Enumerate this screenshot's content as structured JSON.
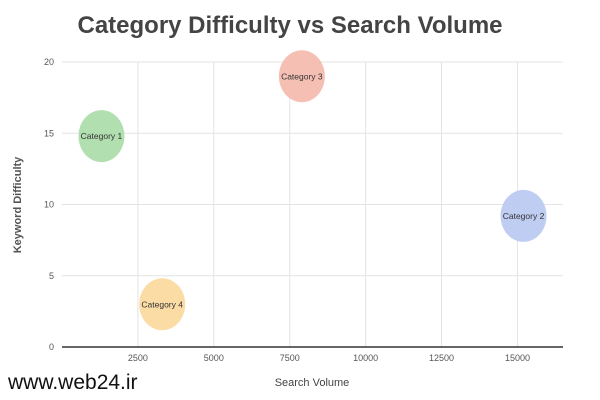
{
  "chart_data": {
    "type": "scatter",
    "title": "Category Difficulty vs Search Volume",
    "xlabel": "Search Volume",
    "ylabel": "Keyword Difficulty",
    "xlim": [
      0,
      16500
    ],
    "ylim": [
      0,
      20
    ],
    "x_ticks": [
      2500,
      5000,
      7500,
      10000,
      12500,
      15000
    ],
    "y_ticks": [
      0,
      5,
      10,
      15,
      20
    ],
    "grid": true,
    "legend": "none",
    "points": [
      {
        "label": "Category 1",
        "x": 1300,
        "y": 14.8,
        "color": "#a8dca6"
      },
      {
        "label": "Category 2",
        "x": 15200,
        "y": 9.2,
        "color": "#b7c8f0"
      },
      {
        "label": "Category 3",
        "x": 7900,
        "y": 19.0,
        "color": "#f4b9ab"
      },
      {
        "label": "Category 4",
        "x": 3300,
        "y": 3.0,
        "color": "#fbd89a"
      }
    ]
  },
  "watermark": "www.web24.ir"
}
